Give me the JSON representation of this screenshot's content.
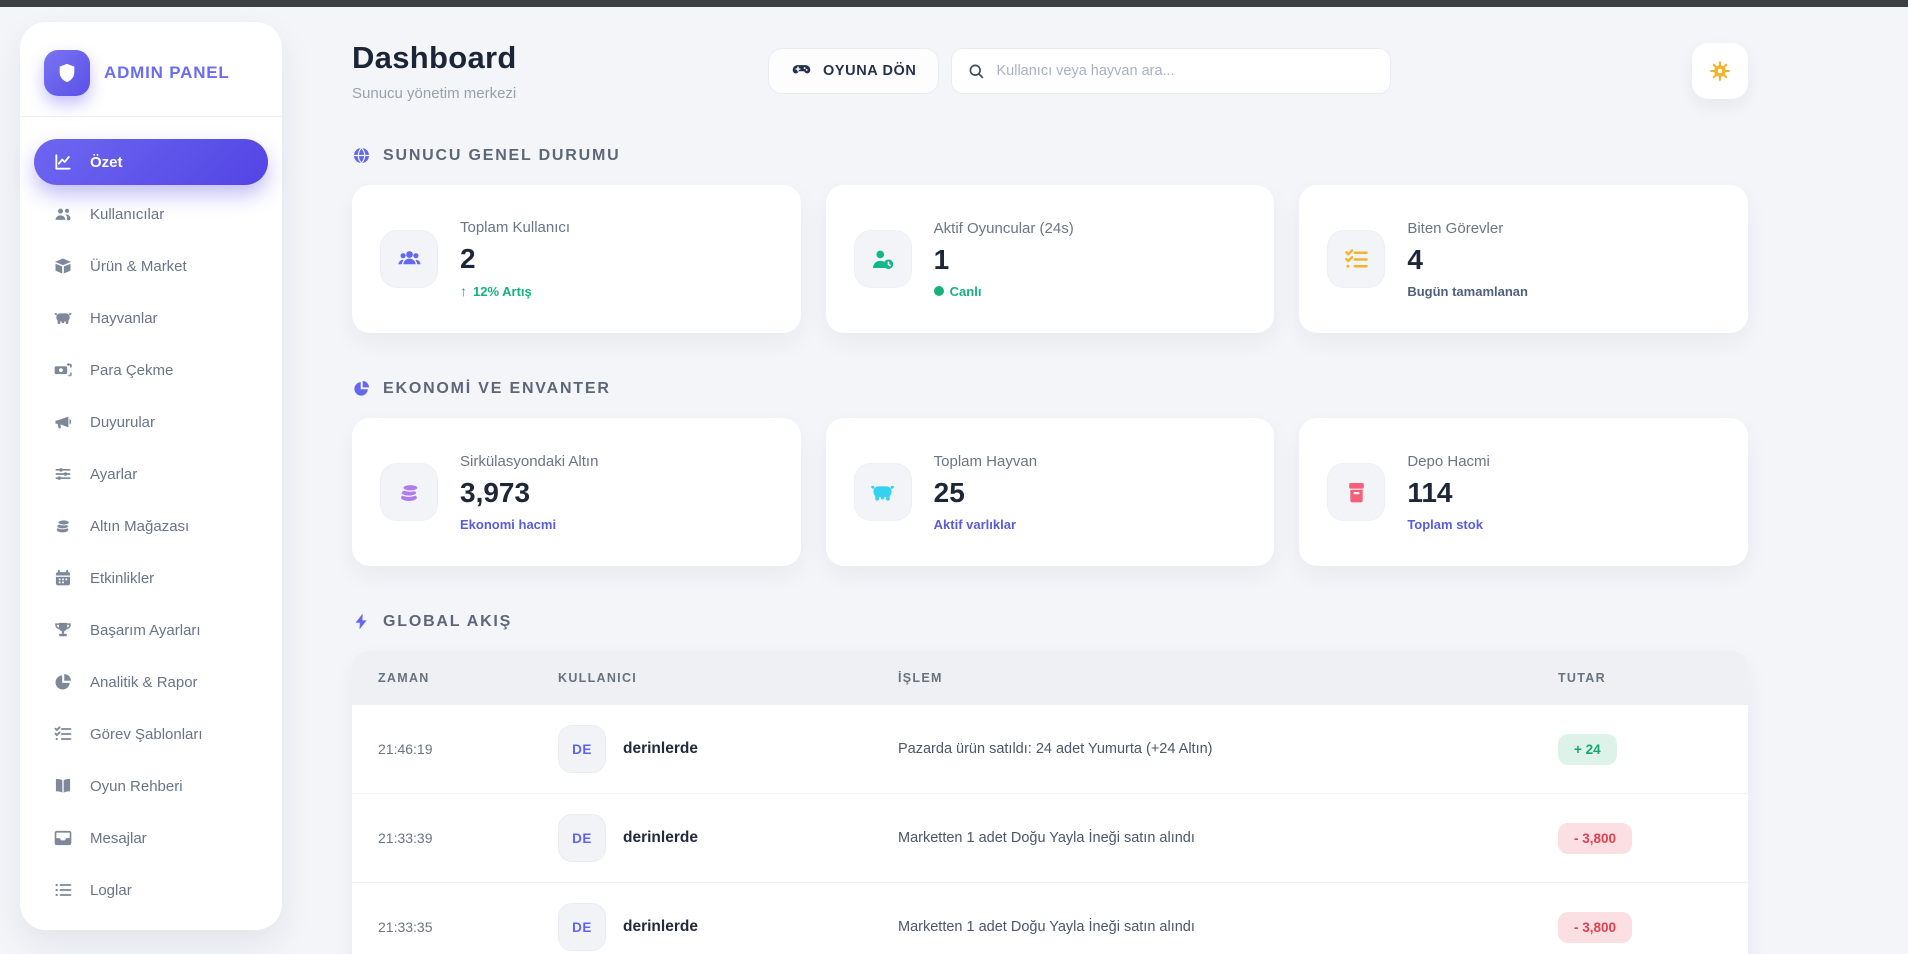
{
  "colors": {
    "accent_purple": "#5244e4",
    "brand_purple": "#6b6cf0",
    "positive_green": "#16b07c",
    "negative_red": "#e04050",
    "amber": "#f0b42d",
    "badge_green_bg": "#ddf3e9",
    "badge_red_bg": "#fbdfe2"
  },
  "sidebar": {
    "brand": {
      "title": "ADMIN PANEL",
      "icon": "shield-icon"
    },
    "items": [
      {
        "label": "Özet",
        "icon": "chart-line-icon",
        "active": true
      },
      {
        "label": "Kullanıcılar",
        "icon": "users-gear-icon",
        "active": false
      },
      {
        "label": "Ürün & Market",
        "icon": "box-icon",
        "active": false
      },
      {
        "label": "Hayvanlar",
        "icon": "cow-icon",
        "active": false
      },
      {
        "label": "Para Çekme",
        "icon": "money-transfer-icon",
        "active": false
      },
      {
        "label": "Duyurular",
        "icon": "megaphone-icon",
        "active": false
      },
      {
        "label": "Ayarlar",
        "icon": "sliders-icon",
        "active": false
      },
      {
        "label": "Altın Mağazası",
        "icon": "coins-icon",
        "active": false
      },
      {
        "label": "Etkinlikler",
        "icon": "calendar-icon",
        "active": false
      },
      {
        "label": "Başarım Ayarları",
        "icon": "trophy-icon",
        "active": false
      },
      {
        "label": "Analitik & Rapor",
        "icon": "pie-chart-icon",
        "active": false
      },
      {
        "label": "Görev Şablonları",
        "icon": "list-check-icon",
        "active": false
      },
      {
        "label": "Oyun Rehberi",
        "icon": "book-icon",
        "active": false
      },
      {
        "label": "Mesajlar",
        "icon": "inbox-icon",
        "active": false
      },
      {
        "label": "Loglar",
        "icon": "list-icon",
        "active": false
      }
    ]
  },
  "header": {
    "title": "Dashboard",
    "subtitle": "Sunucu yönetim merkezi",
    "game_button_label": "OYUNA DÖN",
    "game_button_icon": "gamepad-icon",
    "search_placeholder": "Kullanıcı veya hayvan ara...",
    "search_value": "",
    "theme_button_icon": "gear-sun-icon"
  },
  "stats_sections": [
    {
      "title": "SUNUCU GENEL DURUMU",
      "icon": "globe-icon",
      "cards": [
        {
          "label": "Toplam Kullanıcı",
          "value": "2",
          "sub": "12% Artış",
          "sub_type": "positive",
          "sub_icon": "trend-up-icon",
          "icon": "users-icon",
          "icon_color": "#6467f2"
        },
        {
          "label": "Aktif Oyuncular (24s)",
          "value": "1",
          "sub": "Canlı",
          "sub_type": "live",
          "sub_icon": "live-dot",
          "icon": "user-clock-icon",
          "icon_color": "#14b789"
        },
        {
          "label": "Biten Görevler",
          "value": "4",
          "sub": "Bugün tamamlanan",
          "sub_type": "muted",
          "sub_icon": null,
          "icon": "tasks-icon",
          "icon_color": "#f0b42d"
        }
      ]
    },
    {
      "title": "EKONOMİ VE ENVANTER",
      "icon": "pie-chart-icon",
      "cards": [
        {
          "label": "Sirkülasyondaki Altın",
          "value": "3,973",
          "sub": "Ekonomi hacmi",
          "sub_type": "accent",
          "sub_icon": null,
          "icon": "coins-icon",
          "icon_color": "#b07cf0"
        },
        {
          "label": "Toplam Hayvan",
          "value": "25",
          "sub": "Aktif varlıklar",
          "sub_type": "accent",
          "sub_icon": null,
          "icon": "cow-icon",
          "icon_color": "#36d1ee"
        },
        {
          "label": "Depo Hacmi",
          "value": "114",
          "sub": "Toplam stok",
          "sub_type": "accent",
          "sub_icon": null,
          "icon": "archive-icon",
          "icon_color": "#f45f79"
        }
      ]
    }
  ],
  "feed": {
    "title": "GLOBAL AKIŞ",
    "icon": "bolt-icon",
    "columns": [
      "ZAMAN",
      "KULLANICI",
      "İŞLEM",
      "TUTAR"
    ],
    "rows": [
      {
        "time": "21:46:19",
        "user_initials": "DE",
        "user": "derinlerde",
        "action": "Pazarda ürün satıldı: 24 adet Yumurta (+24 Altın)",
        "amount": "+ 24",
        "amount_type": "positive"
      },
      {
        "time": "21:33:39",
        "user_initials": "DE",
        "user": "derinlerde",
        "action": "Marketten 1 adet Doğu Yayla İneği satın alındı",
        "amount": "- 3,800",
        "amount_type": "negative"
      },
      {
        "time": "21:33:35",
        "user_initials": "DE",
        "user": "derinlerde",
        "action": "Marketten 1 adet Doğu Yayla İneği satın alındı",
        "amount": "- 3,800",
        "amount_type": "negative"
      }
    ]
  }
}
